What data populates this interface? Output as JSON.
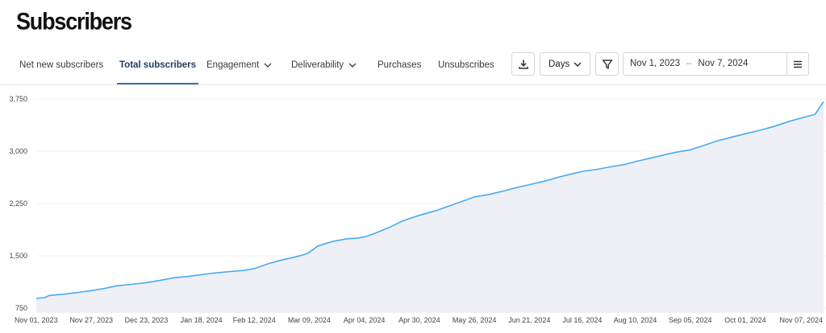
{
  "page": {
    "title": "Subscribers"
  },
  "tabs": [
    {
      "label": "Net new subscribers",
      "active": false,
      "dropdown": false
    },
    {
      "label": "Total subscribers",
      "active": true,
      "dropdown": false
    },
    {
      "label": "Engagement",
      "active": false,
      "dropdown": true
    },
    {
      "label": "Deliverability",
      "active": false,
      "dropdown": true
    },
    {
      "label": "Purchases",
      "active": false,
      "dropdown": false
    },
    {
      "label": "Unsubscribes",
      "active": false,
      "dropdown": false
    }
  ],
  "toolbar": {
    "download_icon": "download-icon",
    "interval_value": "Days",
    "filter_icon": "filter-icon",
    "date_start": "Nov 1, 2023",
    "date_separator": "–",
    "date_end": "Nov 7, 2024",
    "menu_icon": "hamburger-menu-icon"
  },
  "colors": {
    "line": "#48aaf0",
    "area": "#eef0f5",
    "active_tab": "#1f3a5f",
    "active_tab_underline": "#3f6fa8"
  },
  "chart_data": {
    "type": "area",
    "title": "",
    "xlabel": "",
    "ylabel": "",
    "ylim": [
      750,
      3800
    ],
    "yticks": [
      {
        "value": 750,
        "label": "750"
      },
      {
        "value": 1500,
        "label": "1,500"
      },
      {
        "value": 2250,
        "label": "2,250"
      },
      {
        "value": 3000,
        "label": "3,000"
      },
      {
        "value": 3750,
        "label": "3,750"
      }
    ],
    "xticks": [
      {
        "date": "2023-11-01",
        "label": "Nov 01, 2023"
      },
      {
        "date": "2023-11-27",
        "label": "Nov 27, 2023"
      },
      {
        "date": "2023-12-23",
        "label": "Dec 23, 2023"
      },
      {
        "date": "2024-01-18",
        "label": "Jan 18, 2024"
      },
      {
        "date": "2024-02-12",
        "label": "Feb 12, 2024"
      },
      {
        "date": "2024-03-09",
        "label": "Mar 09, 2024"
      },
      {
        "date": "2024-04-04",
        "label": "Apr 04, 2024"
      },
      {
        "date": "2024-04-30",
        "label": "Apr 30, 2024"
      },
      {
        "date": "2024-05-26",
        "label": "May 26, 2024"
      },
      {
        "date": "2024-06-21",
        "label": "Jun 21, 2024"
      },
      {
        "date": "2024-07-16",
        "label": "Jul 16, 2024"
      },
      {
        "date": "2024-08-10",
        "label": "Aug 10, 2024"
      },
      {
        "date": "2024-09-05",
        "label": "Sep 05, 2024"
      },
      {
        "date": "2024-10-01",
        "label": "Oct 01, 2024"
      },
      {
        "date": "2024-11-07",
        "label": "Nov 07, 2024"
      }
    ],
    "grid": true,
    "series": [
      {
        "x": [
          "2023-11-01",
          "2023-11-05",
          "2023-11-07",
          "2023-11-14",
          "2023-11-21",
          "2023-11-27",
          "2023-12-03",
          "2023-12-09",
          "2023-12-16",
          "2023-12-23",
          "2023-12-30",
          "2024-01-05",
          "2024-01-12",
          "2024-01-18",
          "2024-01-25",
          "2024-02-01",
          "2024-02-07",
          "2024-02-12",
          "2024-02-19",
          "2024-02-25",
          "2024-03-02",
          "2024-03-07",
          "2024-03-09",
          "2024-03-13",
          "2024-03-20",
          "2024-03-27",
          "2024-04-01",
          "2024-04-04",
          "2024-04-08",
          "2024-04-16",
          "2024-04-22",
          "2024-04-30",
          "2024-05-08",
          "2024-05-15",
          "2024-05-22",
          "2024-05-26",
          "2024-06-02",
          "2024-06-09",
          "2024-06-15",
          "2024-06-21",
          "2024-06-28",
          "2024-07-05",
          "2024-07-11",
          "2024-07-16",
          "2024-07-23",
          "2024-07-30",
          "2024-08-05",
          "2024-08-10",
          "2024-08-17",
          "2024-08-24",
          "2024-08-30",
          "2024-09-05",
          "2024-09-11",
          "2024-09-18",
          "2024-09-25",
          "2024-10-01",
          "2024-10-08",
          "2024-10-15",
          "2024-10-22",
          "2024-10-28",
          "2024-11-03",
          "2024-11-07"
        ],
        "y": [
          890,
          900,
          930,
          950,
          975,
          1000,
          1030,
          1070,
          1090,
          1115,
          1150,
          1185,
          1205,
          1230,
          1255,
          1275,
          1290,
          1315,
          1390,
          1440,
          1480,
          1520,
          1550,
          1640,
          1705,
          1745,
          1755,
          1770,
          1810,
          1910,
          2000,
          2080,
          2150,
          2225,
          2300,
          2345,
          2380,
          2430,
          2480,
          2520,
          2570,
          2630,
          2675,
          2710,
          2740,
          2780,
          2810,
          2850,
          2900,
          2950,
          2990,
          3020,
          3080,
          3150,
          3205,
          3250,
          3300,
          3360,
          3430,
          3480,
          3530,
          3710
        ]
      }
    ]
  }
}
